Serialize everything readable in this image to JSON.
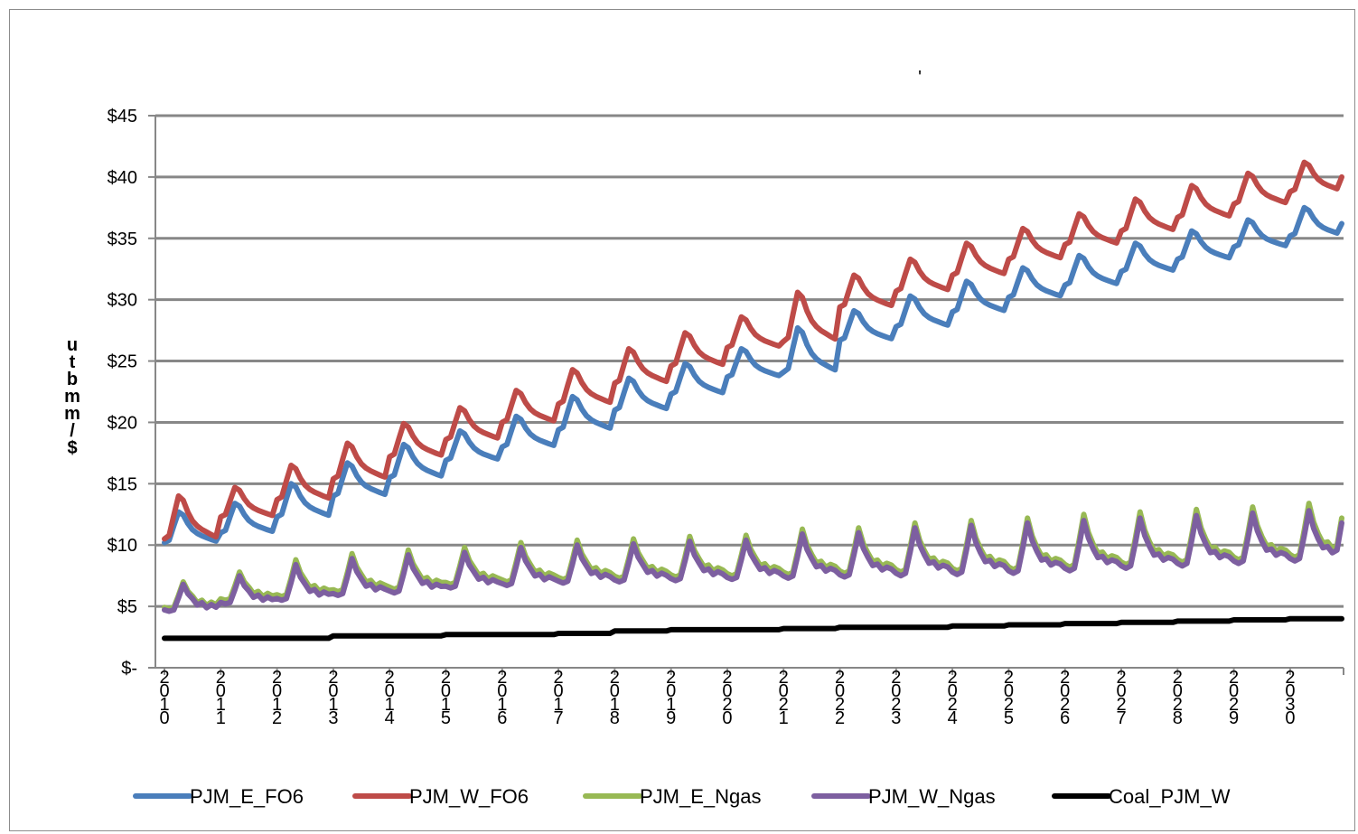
{
  "chart_data": {
    "type": "line",
    "title": "'",
    "ylabel": "$/mmbtu",
    "ylim": [
      0,
      45
    ],
    "yticks": [
      0,
      5,
      10,
      15,
      20,
      25,
      30,
      35,
      40,
      45
    ],
    "ytick_labels": [
      "$-",
      "$5",
      "$10",
      "$15",
      "$20",
      "$25",
      "$30",
      "$35",
      "$40",
      "$45"
    ],
    "x_years": [
      2010,
      2011,
      2012,
      2013,
      2014,
      2015,
      2016,
      2017,
      2018,
      2019,
      2020,
      2021,
      2022,
      2023,
      2024,
      2025,
      2026,
      2027,
      2028,
      2029,
      2030
    ],
    "xtick_labels": [
      "2010",
      "2011",
      "2012",
      "2013",
      "2014",
      "2015",
      "2016",
      "2017",
      "2018",
      "2019",
      "2020",
      "2021",
      "2022",
      "2023",
      "2024",
      "2025",
      "2026",
      "2027",
      "2028",
      "2029",
      "2030"
    ],
    "points_per_year": 12,
    "grid": true,
    "legend_position": "bottom",
    "series": [
      {
        "name": "PJM_E_FO6",
        "color": "#4a7ebb",
        "annual_base": [
          10.2,
          11.0,
          12.3,
          14.0,
          15.5,
          16.9,
          18.0,
          19.4,
          21.0,
          22.3,
          23.7,
          24.1,
          26.7,
          27.8,
          29.0,
          30.2,
          31.2,
          32.3,
          33.3,
          34.3,
          35.2
        ],
        "annual_peak": [
          12.7,
          13.4,
          15.0,
          16.7,
          18.2,
          19.3,
          20.5,
          22.1,
          23.6,
          24.8,
          26.0,
          27.7,
          29.1,
          30.3,
          31.5,
          32.6,
          33.6,
          34.6,
          35.6,
          36.5,
          37.5
        ],
        "end_value": 36.2
      },
      {
        "name": "PJM_W_FO6",
        "color": "#be4b48",
        "annual_base": [
          10.5,
          12.3,
          13.7,
          15.4,
          17.2,
          18.6,
          20.0,
          21.5,
          23.2,
          24.6,
          26.1,
          26.6,
          29.4,
          30.7,
          32.0,
          33.3,
          34.5,
          35.6,
          36.7,
          37.8,
          38.8
        ],
        "annual_peak": [
          14.0,
          14.7,
          16.5,
          18.3,
          19.9,
          21.2,
          22.6,
          24.3,
          26.0,
          27.3,
          28.6,
          30.6,
          32.0,
          33.3,
          34.6,
          35.8,
          37.0,
          38.2,
          39.3,
          40.3,
          41.2
        ],
        "end_value": 40.0
      },
      {
        "name": "PJM_E_Ngas",
        "color": "#98b954",
        "annual_base": [
          4.8,
          5.5,
          5.8,
          6.2,
          6.4,
          6.8,
          7.0,
          7.2,
          7.3,
          7.4,
          7.5,
          7.6,
          7.7,
          7.8,
          7.9,
          8.0,
          8.2,
          8.4,
          8.6,
          8.8,
          9.0
        ],
        "annual_peak": [
          7.0,
          7.8,
          8.8,
          9.3,
          9.6,
          9.8,
          10.2,
          10.4,
          10.5,
          10.7,
          10.8,
          11.3,
          11.4,
          11.8,
          12.0,
          12.2,
          12.5,
          12.7,
          12.9,
          13.1,
          13.4
        ],
        "end_value": 12.2
      },
      {
        "name": "PJM_W_Ngas",
        "color": "#7d5fa0",
        "annual_base": [
          4.6,
          5.2,
          5.5,
          5.9,
          6.1,
          6.5,
          6.7,
          6.9,
          7.0,
          7.1,
          7.2,
          7.3,
          7.4,
          7.5,
          7.6,
          7.7,
          7.9,
          8.1,
          8.3,
          8.5,
          8.7
        ],
        "annual_peak": [
          6.8,
          7.5,
          8.4,
          8.9,
          9.2,
          9.4,
          9.8,
          10.0,
          10.1,
          10.3,
          10.4,
          10.9,
          11.0,
          11.4,
          11.6,
          11.8,
          12.0,
          12.2,
          12.4,
          12.6,
          12.8
        ],
        "end_value": 11.8
      },
      {
        "name": "Coal_PJM_W",
        "color": "#000000",
        "annual_base": [
          2.4,
          2.4,
          2.4,
          2.6,
          2.6,
          2.7,
          2.7,
          2.8,
          3.0,
          3.1,
          3.1,
          3.2,
          3.3,
          3.3,
          3.4,
          3.5,
          3.6,
          3.7,
          3.8,
          3.9,
          4.0
        ],
        "annual_peak": [
          2.4,
          2.4,
          2.4,
          2.6,
          2.6,
          2.7,
          2.7,
          2.8,
          3.0,
          3.1,
          3.1,
          3.2,
          3.3,
          3.3,
          3.4,
          3.5,
          3.6,
          3.7,
          3.8,
          3.9,
          4.0
        ],
        "end_value": 4.0
      }
    ]
  }
}
